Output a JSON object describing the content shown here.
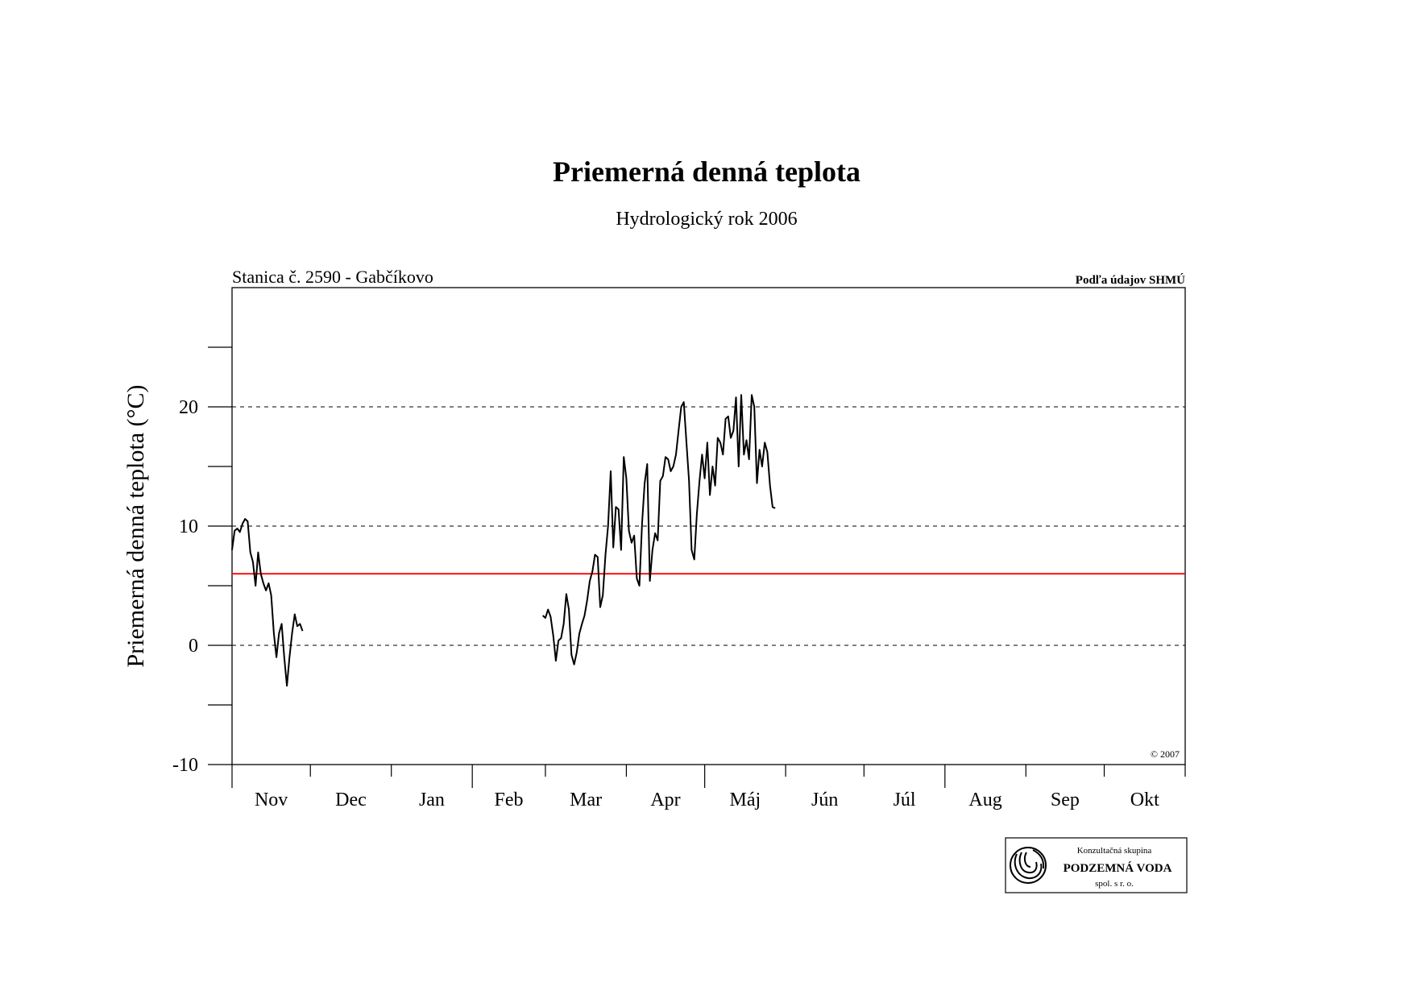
{
  "chart_data": {
    "type": "line",
    "title": "Priemerná denná teplota",
    "subtitle": "Hydrologický rok 2006",
    "station": "Stanica č. 2590 - Gabčíkovo",
    "source": "Podľa údajov SHMÚ",
    "copyright": "© 2007",
    "ylabel": "Priemerná denná teplota (°C)",
    "xlabel": "",
    "ylim": [
      -10,
      30
    ],
    "yticks": [
      -10,
      0,
      10,
      20
    ],
    "gridlines": [
      0,
      10,
      20
    ],
    "months": [
      "Nov",
      "Dec",
      "Jan",
      "Feb",
      "Mar",
      "Apr",
      "Máj",
      "Jún",
      "Júl",
      "Aug",
      "Sep",
      "Okt"
    ],
    "month_days": [
      30,
      31,
      31,
      28,
      31,
      30,
      31,
      30,
      31,
      31,
      30,
      31
    ],
    "reference_line": {
      "value": 6,
      "color": "#ff0000"
    },
    "line_color": "#000000",
    "series": [
      {
        "segments": [
          {
            "start_day": 1,
            "values": [
              8.0,
              9.6,
              9.8,
              9.5,
              10.2,
              10.6,
              10.4,
              7.8,
              7.0,
              5.0,
              7.8,
              6.0,
              5.2,
              4.6,
              5.2,
              4.2,
              1.0,
              -1.0,
              1.0,
              1.8,
              -1.0,
              -3.4,
              -1.0,
              1.0,
              2.6,
              1.6,
              1.8,
              1.2
            ]
          },
          {
            "start_day": 120,
            "values": [
              2.5,
              2.3,
              3.0,
              2.4,
              0.8,
              -1.3,
              0.4,
              0.6,
              1.8,
              4.3,
              3.0,
              -0.8,
              -1.6,
              -0.6,
              1.0,
              1.8,
              2.5,
              3.8,
              5.4,
              6.2,
              7.6,
              7.4,
              3.2,
              4.2,
              7.6,
              10.0,
              14.6,
              8.2,
              11.6,
              11.4,
              8.0,
              15.8,
              14.0,
              9.6,
              8.6,
              9.2,
              5.6,
              5.0,
              10.2,
              13.6,
              15.2,
              5.4,
              8.0,
              9.4,
              8.8,
              13.8,
              14.2,
              15.8,
              15.6,
              14.6,
              15.0,
              16.0,
              18.0,
              20.0,
              20.4,
              17.0,
              13.8,
              8.0,
              7.2,
              11.0,
              13.8,
              16.0,
              14.0,
              17.0,
              12.6,
              15.0,
              13.4,
              17.4,
              17.0,
              16.0,
              19.0,
              19.2,
              17.4,
              18.0,
              20.8,
              15.0,
              21.0,
              16.0,
              17.2,
              15.6,
              21.0,
              20.0,
              13.6,
              16.4,
              15.0,
              17.0,
              16.2,
              13.4,
              11.6,
              11.5
            ]
          }
        ]
      }
    ]
  },
  "logo": {
    "line1": "Konzultačná skupina",
    "line2": "PODZEMNÁ VODA",
    "line3": "spol. s r. o."
  }
}
